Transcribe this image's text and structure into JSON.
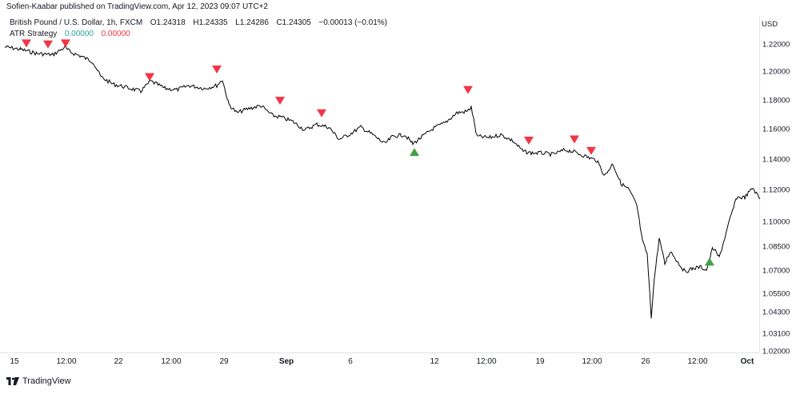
{
  "header": {
    "publisher_line": "Sofien-Kaabar published on TradingView.com, Apr 12, 2023 09:07 UTC+2"
  },
  "legend": {
    "symbol": "British Pound / U.S. Dollar, 1h, FXCM",
    "open": "O1.24318",
    "high": "H1.24335",
    "low": "L1.24286",
    "close": "C1.24305",
    "change": "−0.00013 (−0.01%)",
    "indicator_name": "ATR Strategy",
    "indicator_value_1": "0.00000",
    "indicator_value_2": "0.00000"
  },
  "footer": {
    "brand": "TradingView"
  },
  "colors": {
    "bull_signal": "#43a047",
    "bear_signal": "#f23645",
    "price_line": "#000000"
  },
  "chart_data": {
    "type": "line",
    "title": "",
    "currency_label": "USD",
    "y_ticks": [
      "1.22000",
      "1.20000",
      "1.18000",
      "1.16000",
      "1.14000",
      "1.12000",
      "1.10000",
      "1.08500",
      "1.07000",
      "1.05500",
      "1.04300",
      "1.03100",
      "1.02000"
    ],
    "x_ticks": [
      "15",
      "12:00",
      "22",
      "12:00",
      "29",
      "Sep",
      "6",
      "12",
      "12:00",
      "19",
      "12:00",
      "26",
      "12:00",
      "Oct"
    ],
    "series": [
      {
        "x": [
          0,
          20,
          40,
          60,
          75,
          82,
          95,
          110,
          120,
          135,
          150,
          170,
          182,
          190,
          200,
          215,
          230,
          250,
          265,
          272,
          280,
          290,
          305,
          320,
          335,
          345,
          360,
          375,
          390,
          405,
          418,
          430,
          445,
          460,
          475,
          485,
          500,
          510,
          520,
          535,
          550,
          565,
          578,
          583,
          590,
          605,
          620,
          635,
          648,
          658,
          670,
          685,
          700,
          710,
          725,
          740,
          750,
          760,
          770,
          780,
          790,
          797,
          803,
          808,
          812,
          818,
          825,
          832,
          840,
          850,
          860,
          870,
          877,
          885,
          893,
          900,
          908,
          915,
          925,
          935,
          945
        ],
        "y": [
          1.2178,
          1.216,
          1.213,
          1.212,
          1.2175,
          1.214,
          1.211,
          1.207,
          1.196,
          1.191,
          1.189,
          1.186,
          1.193,
          1.191,
          1.188,
          1.187,
          1.19,
          1.188,
          1.19,
          1.194,
          1.177,
          1.171,
          1.174,
          1.176,
          1.169,
          1.168,
          1.165,
          1.159,
          1.163,
          1.161,
          1.153,
          1.156,
          1.161,
          1.156,
          1.15,
          1.155,
          1.156,
          1.15,
          1.154,
          1.16,
          1.164,
          1.171,
          1.172,
          1.175,
          1.155,
          1.154,
          1.156,
          1.152,
          1.145,
          1.144,
          1.144,
          1.143,
          1.146,
          1.145,
          1.142,
          1.139,
          1.129,
          1.137,
          1.124,
          1.12,
          1.11,
          1.088,
          1.08,
          1.04,
          1.065,
          1.09,
          1.074,
          1.082,
          1.076,
          1.069,
          1.071,
          1.072,
          1.07,
          1.084,
          1.078,
          1.09,
          1.104,
          1.115,
          1.115,
          1.121,
          1.113
        ]
      }
    ],
    "signals": [
      {
        "kind": "sell",
        "x": 33,
        "y": 1.2204
      },
      {
        "kind": "sell",
        "x": 60,
        "y": 1.2196
      },
      {
        "kind": "sell",
        "x": 82,
        "y": 1.2204
      },
      {
        "kind": "sell",
        "x": 187,
        "y": 1.1958
      },
      {
        "kind": "sell",
        "x": 271,
        "y": 1.2012
      },
      {
        "kind": "sell",
        "x": 350,
        "y": 1.1794
      },
      {
        "kind": "sell",
        "x": 402,
        "y": 1.1707
      },
      {
        "kind": "buy",
        "x": 518,
        "y": 1.1447
      },
      {
        "kind": "sell",
        "x": 585,
        "y": 1.1869
      },
      {
        "kind": "sell",
        "x": 661,
        "y": 1.1521
      },
      {
        "kind": "sell",
        "x": 718,
        "y": 1.1529
      },
      {
        "kind": "sell",
        "x": 739,
        "y": 1.1453
      },
      {
        "kind": "buy",
        "x": 887,
        "y": 1.0753
      }
    ],
    "grid": false,
    "legend_position": "top-left"
  }
}
